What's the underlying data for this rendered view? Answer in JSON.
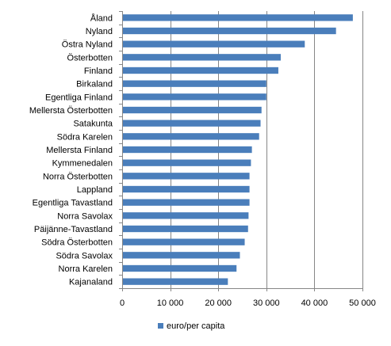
{
  "chart_data": {
    "type": "bar",
    "orientation": "horizontal",
    "categories": [
      "Åland",
      "Nyland",
      "Östra Nyland",
      "Österbotten",
      "Finland",
      "Birkaland",
      "Egentliga Finland",
      "Mellersta Österbotten",
      "Satakunta",
      "Södra Karelen",
      "Mellersta Finland",
      "Kymmenedalen",
      "Norra Österbotten",
      "Lappland",
      "Egentliga Tavastland",
      "Norra Savolax",
      "Päijänne-Tavastland",
      "Södra Österbotten",
      "Södra Savolax",
      "Norra Karelen",
      "Kajanaland"
    ],
    "series": [
      {
        "name": "euro/per capita",
        "color": "#4a7ebb",
        "values": [
          48000,
          44500,
          38000,
          33000,
          32500,
          30000,
          30000,
          29000,
          28800,
          28500,
          27000,
          26800,
          26500,
          26500,
          26500,
          26300,
          26200,
          25500,
          24500,
          23800,
          22000
        ]
      }
    ],
    "xlim": [
      0,
      50000
    ],
    "xticks": [
      0,
      10000,
      20000,
      30000,
      40000,
      50000
    ],
    "xtick_labels": [
      "0",
      "10 000",
      "20 000",
      "30 000",
      "40 000",
      "50 000"
    ],
    "grid": "vertical",
    "legend": "bottom-center",
    "title": "",
    "xlabel": "",
    "ylabel": ""
  }
}
